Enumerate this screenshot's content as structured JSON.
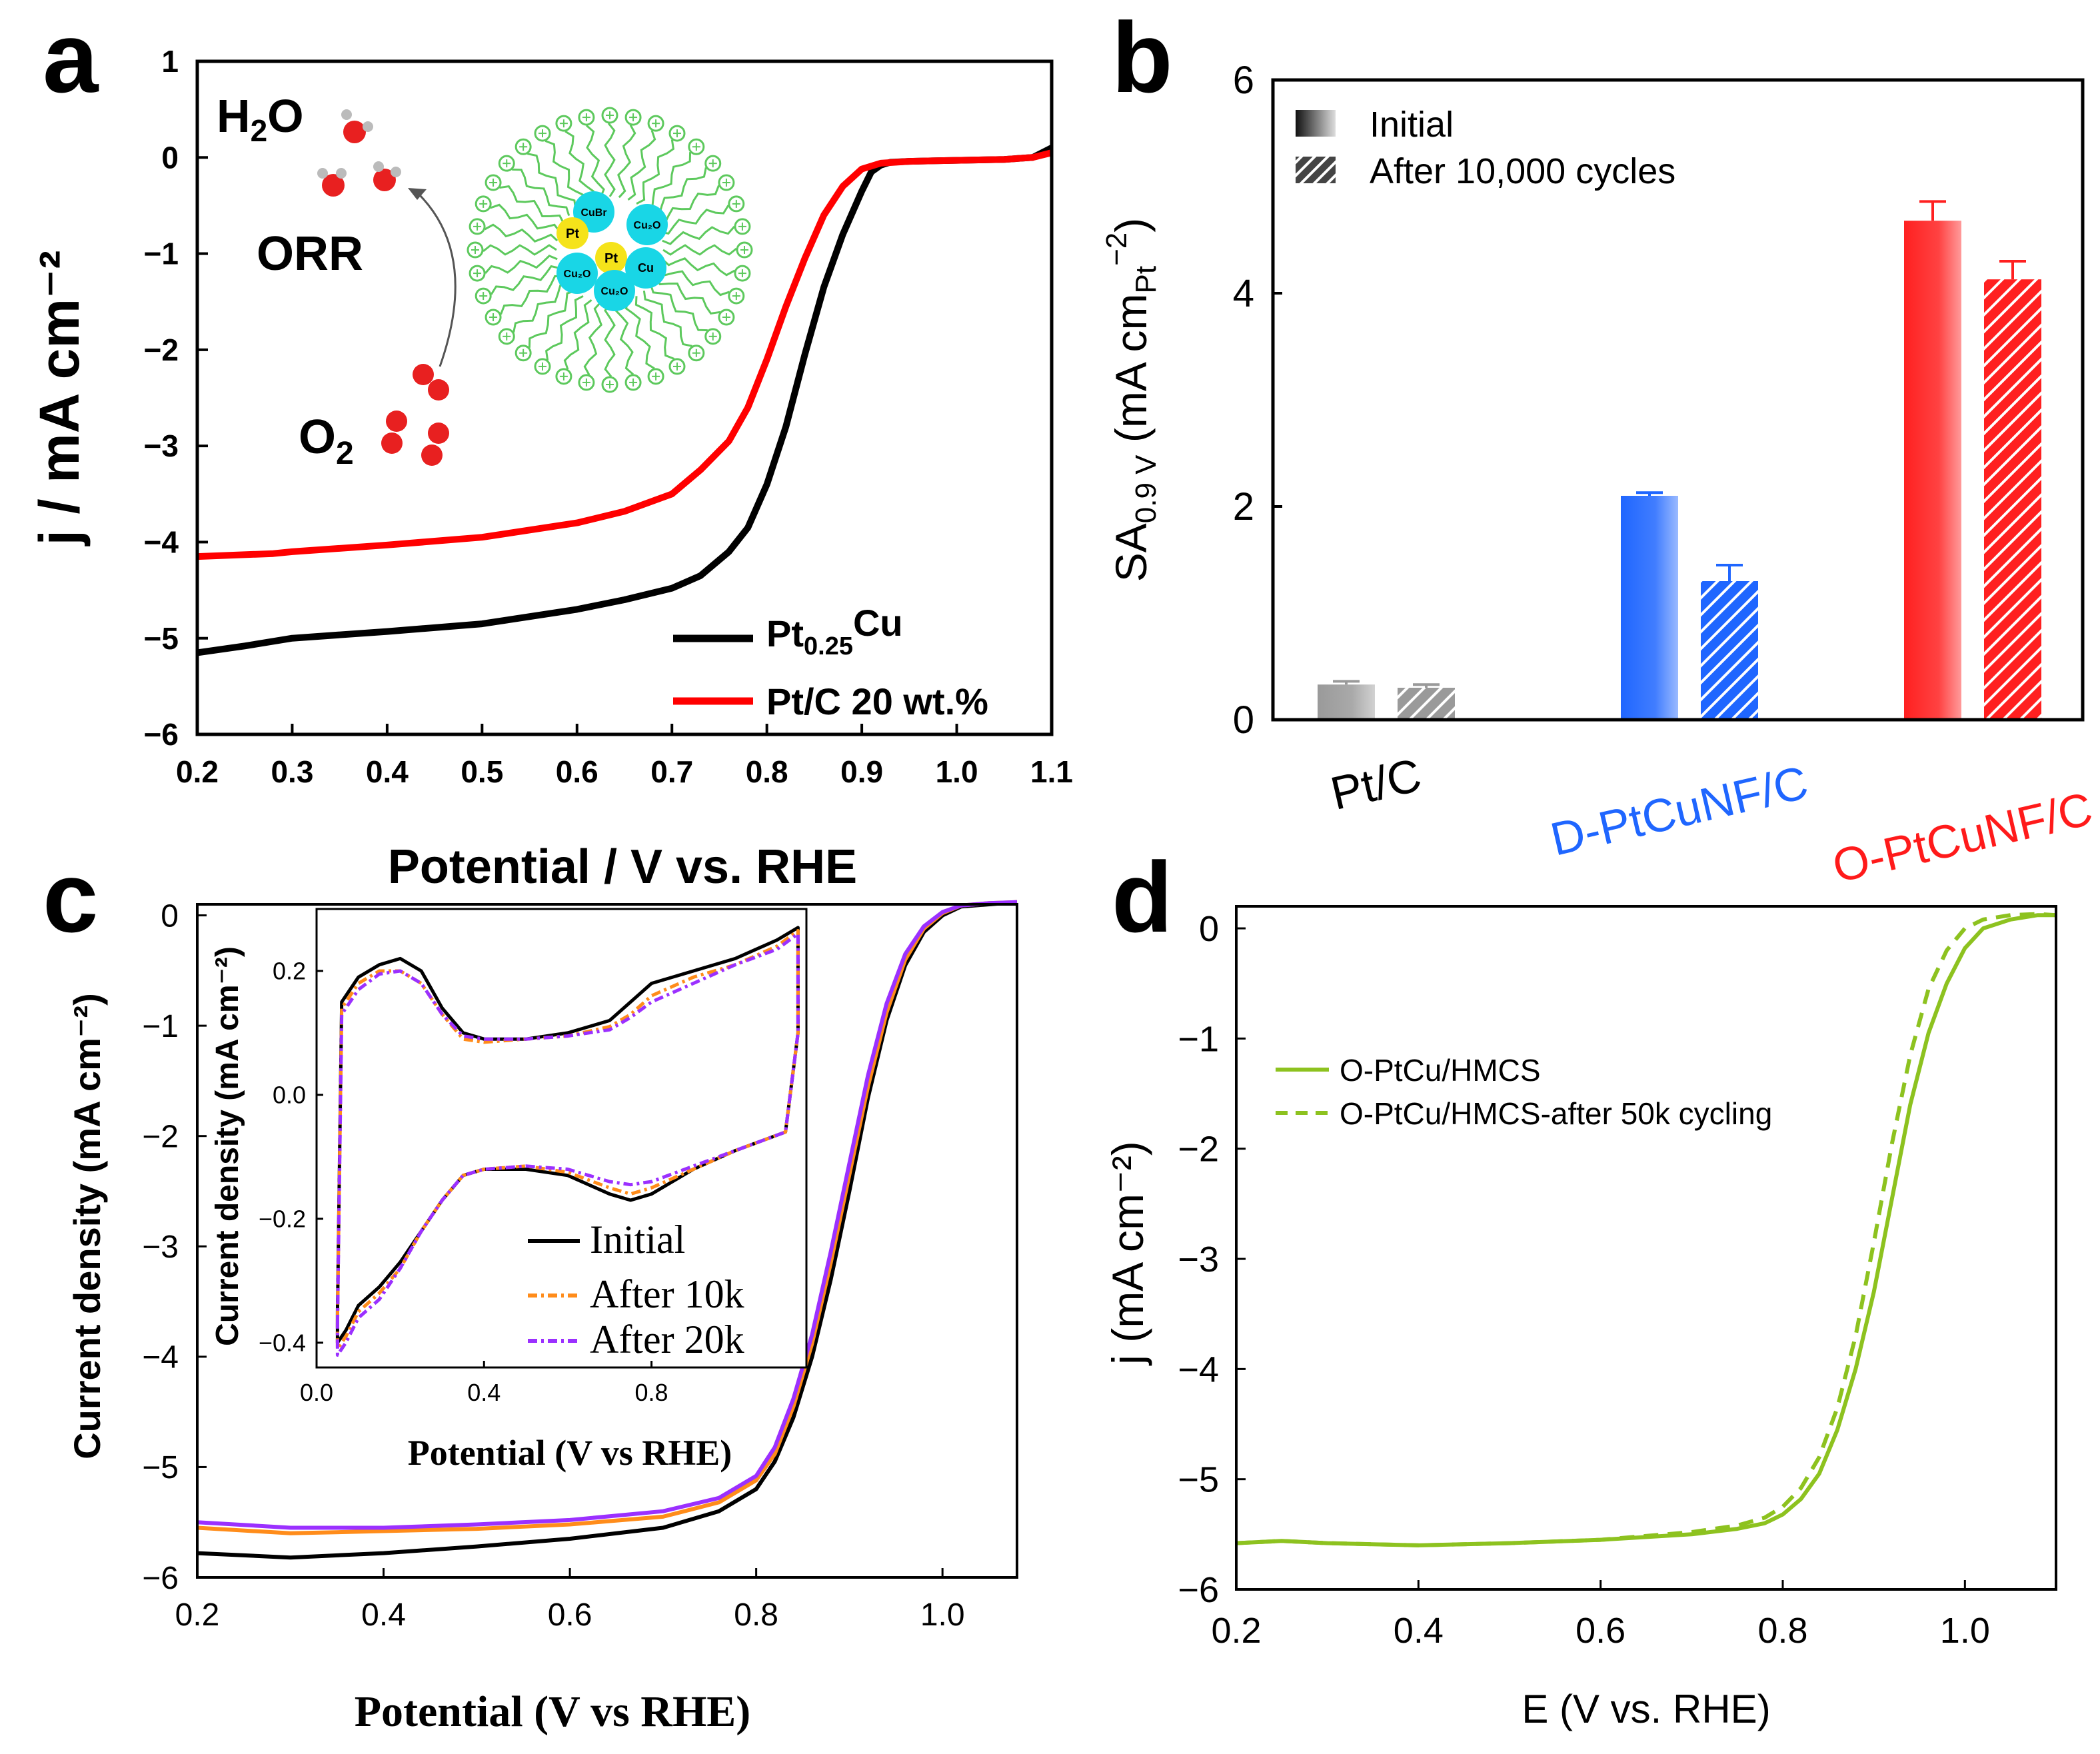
{
  "chart_data": [
    {
      "id": "a",
      "type": "line",
      "panel_label": "a",
      "xlabel": "Potential / V vs. RHE",
      "ylabel": "j / mA cm⁻²",
      "xlim": [
        0.2,
        1.1
      ],
      "ylim": [
        -6,
        1
      ],
      "xticks": [
        "0.2",
        "0.3",
        "0.4",
        "0.5",
        "0.6",
        "0.7",
        "0.8",
        "0.9",
        "1.0",
        "1.1"
      ],
      "yticks": [
        "1",
        "0",
        "-1",
        "-2",
        "-3",
        "-4",
        "-5",
        "-6"
      ],
      "series": [
        {
          "name": "Pt0.25Cu",
          "legend_main": "Pt",
          "legend_sub": "0.25",
          "legend_rest": "Cu",
          "color": "#000000",
          "x": [
            0.2,
            0.25,
            0.3,
            0.4,
            0.5,
            0.6,
            0.65,
            0.7,
            0.73,
            0.76,
            0.78,
            0.8,
            0.82,
            0.84,
            0.86,
            0.88,
            0.9,
            0.91,
            0.92,
            0.93,
            0.95,
            1.0,
            1.05,
            1.08,
            1.1
          ],
          "y": [
            -5.15,
            -5.08,
            -5.0,
            -4.93,
            -4.85,
            -4.7,
            -4.6,
            -4.48,
            -4.35,
            -4.1,
            -3.85,
            -3.4,
            -2.8,
            -2.05,
            -1.35,
            -0.8,
            -0.35,
            -0.15,
            -0.08,
            -0.05,
            -0.04,
            -0.03,
            -0.02,
            0.0,
            0.1
          ]
        },
        {
          "name": "Pt/C 20 wt.%",
          "legend_main": "Pt/C 20 wt.%",
          "color": "#ff0000",
          "x": [
            0.2,
            0.28,
            0.3,
            0.4,
            0.5,
            0.6,
            0.65,
            0.7,
            0.73,
            0.76,
            0.78,
            0.8,
            0.82,
            0.84,
            0.86,
            0.88,
            0.9,
            0.92,
            0.95,
            1.0,
            1.05,
            1.08,
            1.1
          ],
          "y": [
            -4.15,
            -4.12,
            -4.1,
            -4.03,
            -3.95,
            -3.8,
            -3.68,
            -3.5,
            -3.25,
            -2.95,
            -2.6,
            -2.1,
            -1.55,
            -1.05,
            -0.6,
            -0.3,
            -0.12,
            -0.06,
            -0.04,
            -0.03,
            -0.02,
            0.0,
            0.05
          ]
        }
      ],
      "annotations": {
        "water": "H",
        "water_sub": "2",
        "water_rest": "O",
        "orr": "ORR",
        "oxygen": "O",
        "oxygen_sub": "2",
        "particles": [
          "Pt",
          "CuBr",
          "Cu₂O",
          "Pt",
          "Cu₂O",
          "Cu",
          "Cu₂O"
        ]
      }
    },
    {
      "id": "b",
      "type": "bar",
      "panel_label": "b",
      "ylabel_main": "SA",
      "ylabel_sub": "0.9 V",
      "ylabel_rest": " (mA cm",
      "ylabel_pt": "Pt",
      "ylabel_exp": "−2",
      "ylabel_close": ")",
      "ylim": [
        0,
        6
      ],
      "yticks": [
        "0",
        "2",
        "4",
        "6"
      ],
      "categories": [
        "Pt/C",
        "D-PtCuNF/C",
        "O-PtCuNF/C"
      ],
      "category_colors": [
        "#000000",
        "#1f66ff",
        "#ff1a1a"
      ],
      "series": [
        {
          "name": "Initial",
          "values": [
            0.33,
            2.1,
            4.68
          ],
          "errors": [
            0.03,
            0.03,
            0.18
          ]
        },
        {
          "name": "After 10,000 cycles",
          "values": [
            0.3,
            1.3,
            4.13
          ],
          "errors": [
            0.03,
            0.15,
            0.17
          ]
        }
      ],
      "bar_colors": [
        "#9a9a9a",
        "#1f66ff",
        "#ff2020"
      ]
    },
    {
      "id": "c",
      "type": "line",
      "panel_label": "c",
      "xlabel": "Potential (V vs RHE)",
      "ylabel": "Current density (mA cm⁻²)",
      "xlim": [
        0.2,
        1.08
      ],
      "ylim": [
        -6,
        0.1
      ],
      "xticks": [
        "0.2",
        "0.4",
        "0.6",
        "0.8",
        "1.0"
      ],
      "yticks": [
        "0",
        "-1",
        "-2",
        "-3",
        "-4",
        "-5",
        "-6"
      ],
      "series": [
        {
          "name": "Initial",
          "color": "#000000",
          "x": [
            0.2,
            0.3,
            0.4,
            0.5,
            0.6,
            0.7,
            0.76,
            0.8,
            0.82,
            0.84,
            0.86,
            0.88,
            0.9,
            0.92,
            0.94,
            0.96,
            0.98,
            1.0,
            1.02,
            1.05,
            1.08
          ],
          "y": [
            -5.78,
            -5.82,
            -5.78,
            -5.72,
            -5.65,
            -5.55,
            -5.4,
            -5.2,
            -4.95,
            -4.55,
            -4.0,
            -3.3,
            -2.5,
            -1.65,
            -0.95,
            -0.45,
            -0.15,
            0.0,
            0.08,
            0.1,
            0.12
          ]
        },
        {
          "name": "After 10k",
          "color": "#ff8c1a",
          "x": [
            0.2,
            0.3,
            0.4,
            0.5,
            0.6,
            0.7,
            0.76,
            0.8,
            0.82,
            0.84,
            0.86,
            0.88,
            0.9,
            0.92,
            0.94,
            0.96,
            0.98,
            1.0,
            1.02,
            1.05,
            1.08
          ],
          "y": [
            -5.55,
            -5.6,
            -5.58,
            -5.56,
            -5.52,
            -5.45,
            -5.32,
            -5.12,
            -4.88,
            -4.45,
            -3.88,
            -3.15,
            -2.35,
            -1.55,
            -0.88,
            -0.4,
            -0.12,
            0.02,
            0.09,
            0.11,
            0.12
          ]
        },
        {
          "name": "After 20k",
          "color": "#9b30ff",
          "x": [
            0.2,
            0.3,
            0.4,
            0.5,
            0.6,
            0.7,
            0.76,
            0.8,
            0.82,
            0.84,
            0.86,
            0.88,
            0.9,
            0.92,
            0.94,
            0.96,
            0.98,
            1.0,
            1.02,
            1.05,
            1.08
          ],
          "y": [
            -5.5,
            -5.55,
            -5.55,
            -5.52,
            -5.48,
            -5.4,
            -5.28,
            -5.08,
            -4.82,
            -4.38,
            -3.8,
            -3.05,
            -2.25,
            -1.45,
            -0.8,
            -0.35,
            -0.1,
            0.03,
            0.09,
            0.11,
            0.12
          ]
        }
      ],
      "inset": {
        "xlabel": "Potential (V vs RHE)",
        "ylabel": "Current density (mA cm⁻²)",
        "xlim": [
          0.0,
          1.17
        ],
        "ylim": [
          -0.44,
          0.3
        ],
        "xticks": [
          "0.0",
          "0.4",
          "0.8"
        ],
        "yticks": [
          "0.2",
          "0.0",
          "-0.2",
          "-0.4"
        ],
        "series": [
          {
            "name": "Initial",
            "color": "#000000",
            "x": [
              0.05,
              0.06,
              0.1,
              0.15,
              0.2,
              0.25,
              0.3,
              0.35,
              0.4,
              0.5,
              0.6,
              0.7,
              0.75,
              0.8,
              0.9,
              1.0,
              1.1,
              1.15,
              1.15,
              1.12,
              1.0,
              0.9,
              0.8,
              0.75,
              0.7,
              0.6,
              0.5,
              0.4,
              0.35,
              0.3,
              0.25,
              0.2,
              0.15,
              0.1,
              0.07,
              0.05,
              0.05
            ],
            "y": [
              -0.35,
              0.15,
              0.19,
              0.21,
              0.22,
              0.2,
              0.14,
              0.1,
              0.09,
              0.09,
              0.1,
              0.12,
              0.15,
              0.18,
              0.2,
              0.22,
              0.25,
              0.27,
              0.1,
              -0.06,
              -0.09,
              -0.12,
              -0.16,
              -0.17,
              -0.16,
              -0.13,
              -0.12,
              -0.12,
              -0.13,
              -0.17,
              -0.22,
              -0.27,
              -0.31,
              -0.34,
              -0.38,
              -0.4,
              -0.35
            ]
          },
          {
            "name": "After 10k",
            "color": "#ff8c1a",
            "x": [
              0.05,
              0.06,
              0.1,
              0.15,
              0.2,
              0.25,
              0.3,
              0.35,
              0.4,
              0.5,
              0.6,
              0.7,
              0.75,
              0.8,
              0.9,
              1.0,
              1.1,
              1.15,
              1.15,
              1.12,
              1.0,
              0.9,
              0.8,
              0.75,
              0.7,
              0.6,
              0.5,
              0.4,
              0.35,
              0.3,
              0.25,
              0.2,
              0.15,
              0.1,
              0.07,
              0.05,
              0.05
            ],
            "y": [
              -0.36,
              0.14,
              0.18,
              0.2,
              0.2,
              0.18,
              0.13,
              0.09,
              0.085,
              0.09,
              0.095,
              0.11,
              0.13,
              0.16,
              0.19,
              0.21,
              0.24,
              0.265,
              0.1,
              -0.06,
              -0.09,
              -0.12,
              -0.15,
              -0.16,
              -0.15,
              -0.125,
              -0.115,
              -0.12,
              -0.13,
              -0.17,
              -0.22,
              -0.28,
              -0.32,
              -0.35,
              -0.39,
              -0.41,
              -0.36
            ]
          },
          {
            "name": "After 20k",
            "color": "#9b30ff",
            "x": [
              0.05,
              0.06,
              0.1,
              0.15,
              0.2,
              0.25,
              0.3,
              0.35,
              0.4,
              0.5,
              0.6,
              0.7,
              0.75,
              0.8,
              0.9,
              1.0,
              1.1,
              1.15,
              1.15,
              1.12,
              1.0,
              0.9,
              0.8,
              0.75,
              0.7,
              0.6,
              0.5,
              0.4,
              0.35,
              0.3,
              0.25,
              0.2,
              0.15,
              0.1,
              0.07,
              0.05,
              0.05
            ],
            "y": [
              -0.37,
              0.13,
              0.17,
              0.195,
              0.2,
              0.18,
              0.13,
              0.095,
              0.09,
              0.09,
              0.095,
              0.105,
              0.125,
              0.15,
              0.18,
              0.21,
              0.235,
              0.26,
              0.1,
              -0.06,
              -0.09,
              -0.115,
              -0.14,
              -0.145,
              -0.14,
              -0.12,
              -0.115,
              -0.12,
              -0.13,
              -0.17,
              -0.22,
              -0.28,
              -0.33,
              -0.36,
              -0.4,
              -0.42,
              -0.37
            ]
          }
        ]
      }
    },
    {
      "id": "d",
      "type": "line",
      "panel_label": "d",
      "xlabel": "E (V vs. RHE)",
      "ylabel": "j (mA cm⁻²)",
      "xlim": [
        0.2,
        1.1
      ],
      "ylim": [
        -6,
        0.2
      ],
      "xticks": [
        "0.2",
        "0.4",
        "0.6",
        "0.8",
        "1.0"
      ],
      "yticks": [
        "0",
        "-1",
        "-2",
        "-3",
        "-4",
        "-5",
        "-6"
      ],
      "series": [
        {
          "name": "O-PtCu/HMCS",
          "color": "#8dc21f",
          "dash": "",
          "x": [
            0.2,
            0.25,
            0.3,
            0.4,
            0.5,
            0.6,
            0.7,
            0.75,
            0.78,
            0.8,
            0.82,
            0.84,
            0.86,
            0.88,
            0.9,
            0.92,
            0.94,
            0.96,
            0.98,
            1.0,
            1.02,
            1.05,
            1.08,
            1.1
          ],
          "y": [
            -5.58,
            -5.56,
            -5.58,
            -5.6,
            -5.58,
            -5.55,
            -5.5,
            -5.45,
            -5.4,
            -5.32,
            -5.18,
            -4.95,
            -4.55,
            -4.0,
            -3.3,
            -2.45,
            -1.6,
            -0.95,
            -0.5,
            -0.18,
            0.0,
            0.08,
            0.12,
            0.12
          ]
        },
        {
          "name": "O-PtCu/HMCS-after 50k cycling",
          "color": "#8dc21f",
          "dash": "22,14",
          "x": [
            0.2,
            0.25,
            0.3,
            0.4,
            0.5,
            0.6,
            0.7,
            0.75,
            0.78,
            0.8,
            0.82,
            0.84,
            0.86,
            0.88,
            0.9,
            0.92,
            0.94,
            0.96,
            0.98,
            1.0,
            1.02,
            1.05,
            1.08,
            1.1
          ],
          "y": [
            -5.58,
            -5.56,
            -5.58,
            -5.6,
            -5.58,
            -5.55,
            -5.48,
            -5.42,
            -5.35,
            -5.25,
            -5.08,
            -4.8,
            -4.35,
            -3.7,
            -2.85,
            -1.95,
            -1.15,
            -0.55,
            -0.2,
            0.0,
            0.08,
            0.12,
            0.13,
            0.12
          ]
        }
      ]
    }
  ]
}
